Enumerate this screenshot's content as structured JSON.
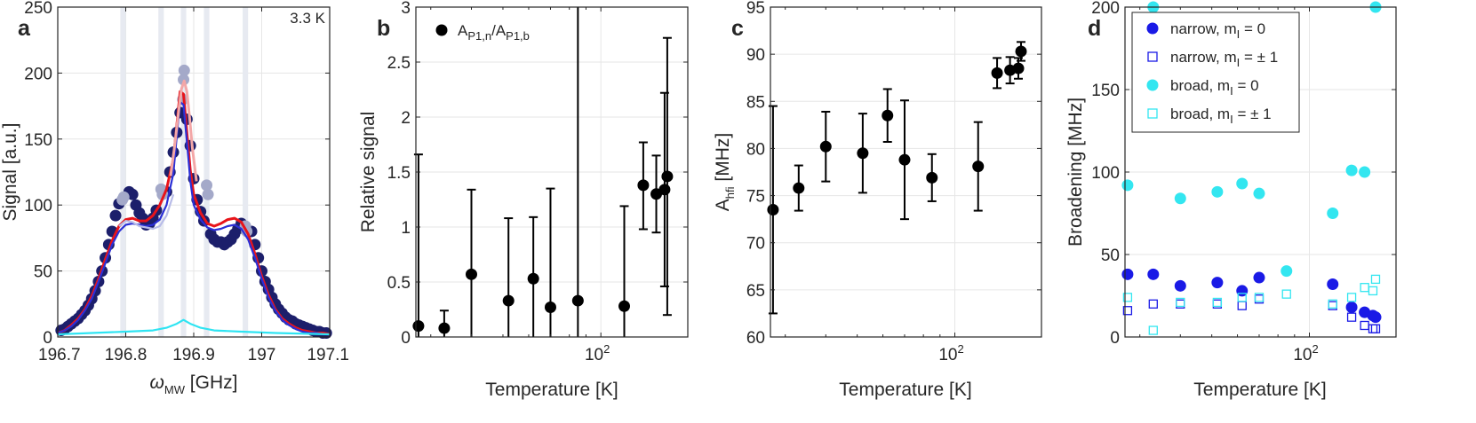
{
  "chart_data": [
    {
      "panel": "a",
      "type": "scatter",
      "annotation": "3.3 K",
      "xlabel": "ω_MW [GHz]",
      "xlabel_main": "ω",
      "xlabel_sub": "MW",
      "xlabel_unit": " [GHz]",
      "ylabel": "Signal [a.u.]",
      "xlim": [
        196.7,
        197.1
      ],
      "ylim": [
        0,
        250
      ],
      "xticks": [
        196.7,
        196.8,
        196.9,
        197,
        197.1
      ],
      "xtick_labels": [
        "196.7",
        "196.8",
        "196.9",
        "197",
        "197.1"
      ],
      "yticks": [
        0,
        50,
        100,
        150,
        200,
        250
      ],
      "grid": true,
      "shaded_bands": [
        [
          196.792,
          196.8
        ],
        [
          196.848,
          196.856
        ],
        [
          196.881,
          196.889
        ],
        [
          196.915,
          196.923
        ],
        [
          196.972,
          196.98
        ]
      ],
      "colors": {
        "data_dark": "#1c1f6b",
        "data_light": "#a4a9c9",
        "data_light2": "#9ea4c7",
        "fit_red": "#e8141a",
        "fit_blue": "#2b2fd6",
        "fit_pink": "#f3a7a7",
        "fit_lightblue": "#b8bce8",
        "fit_cyan": "#2fe4f2",
        "band": "#e7eaf1"
      },
      "series": [
        {
          "role": "data",
          "style": "dark-dots",
          "x": [
            196.705,
            196.71,
            196.715,
            196.72,
            196.725,
            196.73,
            196.735,
            196.74,
            196.745,
            196.75,
            196.755,
            196.76,
            196.765,
            196.77,
            196.775,
            196.78,
            196.785,
            196.79,
            196.805,
            196.81,
            196.815,
            196.82,
            196.825,
            196.83,
            196.835,
            196.84,
            196.845,
            196.86,
            196.865,
            196.87,
            196.875,
            196.88,
            196.89,
            196.895,
            196.9,
            196.905,
            196.91,
            196.915,
            196.925,
            196.93,
            196.935,
            196.94,
            196.945,
            196.95,
            196.955,
            196.96,
            196.965,
            196.97,
            196.985,
            196.99,
            196.995,
            197.0,
            197.005,
            197.01,
            197.015,
            197.02,
            197.025,
            197.03,
            197.035,
            197.04,
            197.045,
            197.05,
            197.055,
            197.06,
            197.065,
            197.07,
            197.075,
            197.08,
            197.085,
            197.09,
            197.095
          ],
          "y": [
            5,
            6,
            8,
            10,
            12,
            14,
            17,
            20,
            24,
            29,
            35,
            42,
            50,
            60,
            70,
            80,
            92,
            101,
            110,
            108,
            100,
            94,
            90,
            85,
            86,
            90,
            96,
            110,
            125,
            140,
            155,
            170,
            165,
            145,
            120,
            104,
            95,
            88,
            78,
            74,
            72,
            72,
            70,
            72,
            74,
            78,
            82,
            86,
            80,
            70,
            60,
            50,
            42,
            36,
            30,
            25,
            21,
            18,
            15,
            13,
            12,
            10,
            9,
            8,
            7,
            6,
            5,
            4,
            4,
            3,
            3
          ]
        },
        {
          "role": "data",
          "style": "light-dots",
          "x": [
            196.795,
            196.797,
            196.852,
            196.854,
            196.884,
            196.885,
            196.886,
            196.919,
            196.921,
            196.976,
            196.978
          ],
          "y": [
            104,
            106,
            112,
            108,
            180,
            195,
            202,
            115,
            108,
            84,
            80
          ]
        },
        {
          "role": "fit",
          "style": "red",
          "x": [
            196.7,
            196.71,
            196.72,
            196.73,
            196.74,
            196.75,
            196.76,
            196.77,
            196.78,
            196.79,
            196.8,
            196.81,
            196.82,
            196.83,
            196.84,
            196.85,
            196.86,
            196.87,
            196.875,
            196.88,
            196.885,
            196.89,
            196.895,
            196.9,
            196.91,
            196.92,
            196.93,
            196.94,
            196.95,
            196.96,
            196.97,
            196.98,
            196.99,
            197.0,
            197.01,
            197.02,
            197.03,
            197.04,
            197.05,
            197.06,
            197.07,
            197.08,
            197.09,
            197.1
          ],
          "y": [
            3,
            5,
            9,
            14,
            21,
            31,
            44,
            59,
            73,
            84,
            89,
            90,
            88,
            88,
            92,
            100,
            112,
            135,
            160,
            186,
            184,
            155,
            126,
            108,
            94,
            86,
            84,
            86,
            89,
            90,
            87,
            78,
            63,
            46,
            32,
            21,
            14,
            10,
            7,
            5,
            4,
            3,
            3,
            2
          ]
        },
        {
          "role": "fit",
          "style": "blue",
          "x": [
            196.7,
            196.71,
            196.72,
            196.73,
            196.74,
            196.75,
            196.76,
            196.77,
            196.78,
            196.79,
            196.8,
            196.81,
            196.82,
            196.83,
            196.84,
            196.85,
            196.86,
            196.87,
            196.875,
            196.88,
            196.885,
            196.89,
            196.895,
            196.9,
            196.91,
            196.92,
            196.93,
            196.94,
            196.95,
            196.96,
            196.97,
            196.98,
            196.99,
            197.0,
            197.01,
            197.02,
            197.03,
            197.04,
            197.05,
            197.06,
            197.07,
            197.08,
            197.09,
            197.1
          ],
          "y": [
            3,
            5,
            8,
            13,
            20,
            29,
            42,
            56,
            70,
            80,
            85,
            86,
            85,
            84,
            85,
            89,
            100,
            124,
            152,
            178,
            176,
            148,
            118,
            100,
            89,
            83,
            81,
            82,
            84,
            85,
            82,
            74,
            60,
            44,
            30,
            20,
            13,
            9,
            6,
            4,
            3,
            3,
            2,
            2
          ]
        },
        {
          "role": "fit",
          "style": "pink",
          "x": [
            196.866,
            196.872,
            196.878,
            196.882,
            196.886,
            196.89,
            196.894,
            196.898,
            196.904
          ],
          "y": [
            122,
            145,
            172,
            188,
            194,
            186,
            166,
            143,
            118
          ]
        },
        {
          "role": "fit",
          "style": "lightblue",
          "x": [
            196.79,
            196.8,
            196.81,
            196.82,
            196.83,
            196.84,
            196.85,
            196.86,
            196.87
          ],
          "y": [
            84,
            88,
            87,
            84,
            83,
            82,
            84,
            92,
            108
          ]
        },
        {
          "role": "fit",
          "style": "cyan",
          "x": [
            196.7,
            196.75,
            196.8,
            196.84,
            196.86,
            196.875,
            196.885,
            196.895,
            196.91,
            196.93,
            196.97,
            197.02,
            197.1
          ],
          "y": [
            2,
            3,
            4,
            5,
            7,
            10,
            13,
            10,
            7,
            5,
            4,
            3,
            2
          ]
        }
      ]
    },
    {
      "panel": "b",
      "type": "scatter",
      "xlabel": "Temperature [K]",
      "ylabel": "Relative signal",
      "xscale": "log",
      "xlim": [
        27,
        185
      ],
      "ylim": [
        0,
        3
      ],
      "xticks": [
        100
      ],
      "xtick_label_main": "10",
      "xtick_label_exp": "2",
      "yticks": [
        0,
        0.5,
        1,
        1.5,
        2,
        2.5,
        3
      ],
      "ytick_labels": [
        "0",
        "0.5",
        "1",
        "1.5",
        "2",
        "2.5",
        "3"
      ],
      "grid": true,
      "legend_position": "top-left",
      "legend_main": "A",
      "legend_sub1": "P1,n",
      "legend_slash": "/A",
      "legend_sub2": "P1,b",
      "legend": "A_P1,n/A_P1,b",
      "series": [
        {
          "x": [
            27.5,
            33,
            40,
            52,
            62,
            70,
            85,
            118,
            135,
            148,
            157,
            160
          ],
          "y": [
            0.1,
            0.08,
            0.57,
            0.33,
            0.53,
            0.27,
            0.33,
            0.28,
            1.38,
            1.3,
            1.34,
            1.46
          ],
          "err_low": [
            0.1,
            0.08,
            0.57,
            0.33,
            0.53,
            0.27,
            0.33,
            0.28,
            0.4,
            0.35,
            0.88,
            1.26
          ],
          "err_high": [
            1.56,
            0.16,
            0.77,
            0.75,
            0.56,
            1.08,
            2.67,
            0.91,
            0.39,
            0.35,
            0.88,
            1.26
          ]
        }
      ]
    },
    {
      "panel": "c",
      "type": "scatter",
      "xlabel": "Temperature [K]",
      "ylabel": "A_hfi [MHz]",
      "ylabel_main": "A",
      "ylabel_sub": "hfi",
      "ylabel_unit": " [MHz]",
      "xscale": "log",
      "xlim": [
        27,
        185
      ],
      "ylim": [
        60,
        95
      ],
      "xticks": [
        100
      ],
      "xtick_label_main": "10",
      "xtick_label_exp": "2",
      "yticks": [
        60,
        65,
        70,
        75,
        80,
        85,
        90,
        95
      ],
      "grid": true,
      "series": [
        {
          "x": [
            27.5,
            33,
            40,
            52,
            62,
            70,
            85,
            118,
            135,
            148,
            157,
            160
          ],
          "y": [
            73.5,
            75.8,
            80.2,
            79.5,
            83.5,
            78.8,
            76.9,
            78.1,
            88,
            88.3,
            88.5,
            90.3
          ],
          "err": [
            11,
            2.4,
            3.7,
            4.2,
            2.8,
            6.3,
            2.5,
            4.7,
            1.6,
            1.4,
            1.1,
            1
          ]
        }
      ]
    },
    {
      "panel": "d",
      "type": "scatter",
      "xlabel": "Temperature [K]",
      "ylabel": "Broadening [MHz]",
      "xscale": "log",
      "xlim": [
        27,
        185
      ],
      "ylim": [
        0,
        200
      ],
      "xticks": [
        100
      ],
      "xtick_label_main": "10",
      "xtick_label_exp": "2",
      "yticks": [
        0,
        50,
        100,
        150,
        200
      ],
      "grid": true,
      "legend_position": "top-left",
      "series": [
        {
          "name": "narrow, m_I = 0",
          "legend_main": "narrow, m",
          "legend_sub": "I",
          "legend_rest": " = 0",
          "marker": "filled-circle",
          "color": "#1a1ae6",
          "x": [
            27.5,
            33,
            40,
            52,
            62,
            70,
            118,
            135,
            148,
            157,
            160
          ],
          "y": [
            38,
            38,
            31,
            33,
            28,
            36,
            32,
            18,
            15,
            13,
            12
          ]
        },
        {
          "name": "narrow, m_I = ± 1",
          "legend_main": "narrow, m",
          "legend_sub": "I",
          "legend_rest": " = ± 1",
          "marker": "open-square",
          "color": "#1a1ae6",
          "x": [
            27.5,
            33,
            40,
            52,
            62,
            70,
            118,
            135,
            148,
            157,
            160
          ],
          "y": [
            16,
            20,
            20,
            20,
            19,
            23,
            19,
            12,
            7,
            5,
            5
          ]
        },
        {
          "name": "broad, m_I = 0",
          "legend_main": "broad, m",
          "legend_sub": "I",
          "legend_rest": " = 0",
          "marker": "filled-circle",
          "color": "#33e6f0",
          "x": [
            27.5,
            33,
            40,
            52,
            62,
            70,
            85,
            118,
            135,
            148,
            160
          ],
          "y": [
            92,
            200,
            84,
            88,
            93,
            87,
            40,
            75,
            101,
            100,
            200
          ]
        },
        {
          "name": "broad, m_I = ± 1",
          "legend_main": "broad, m",
          "legend_sub": "I",
          "legend_rest": " = ± 1",
          "marker": "open-square",
          "color": "#33e6f0",
          "x": [
            27.5,
            33,
            40,
            52,
            62,
            70,
            85,
            118,
            135,
            148,
            157,
            160
          ],
          "y": [
            24,
            4,
            21,
            21,
            24,
            24,
            26,
            20,
            24,
            30,
            28,
            35
          ]
        }
      ]
    }
  ],
  "labels": {
    "a": "a",
    "b": "b",
    "c": "c",
    "d": "d"
  }
}
